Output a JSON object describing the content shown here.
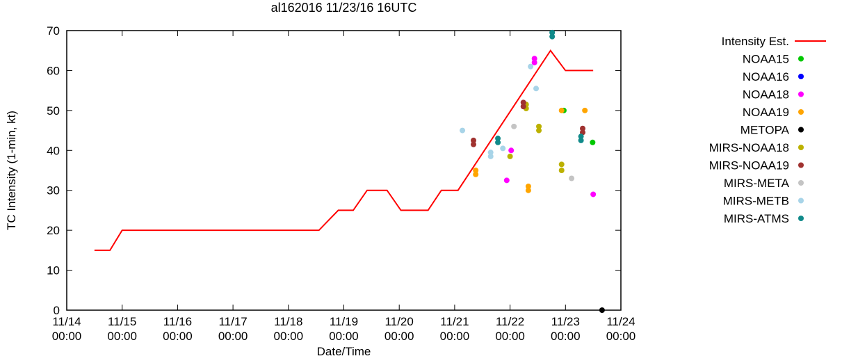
{
  "page": {
    "background_color": "#ffffff",
    "frame_color": "#000000"
  },
  "chart_data": {
    "type": "line",
    "title": "al162016 11/23/16 16UTC",
    "xlabel": "Date/Time",
    "ylabel": "TC Intensity (1-min, kt)",
    "grid": "off",
    "legend_position": "right",
    "x_axis": {
      "units": "days since 11/14 00:00",
      "range": [
        0,
        10
      ],
      "ticks": [
        {
          "pos": 0,
          "date": "11/14",
          "time": "00:00"
        },
        {
          "pos": 1,
          "date": "11/15",
          "time": "00:00"
        },
        {
          "pos": 2,
          "date": "11/16",
          "time": "00:00"
        },
        {
          "pos": 3,
          "date": "11/17",
          "time": "00:00"
        },
        {
          "pos": 4,
          "date": "11/18",
          "time": "00:00"
        },
        {
          "pos": 5,
          "date": "11/19",
          "time": "00:00"
        },
        {
          "pos": 6,
          "date": "11/20",
          "time": "00:00"
        },
        {
          "pos": 7,
          "date": "11/21",
          "time": "00:00"
        },
        {
          "pos": 8,
          "date": "11/22",
          "time": "00:00"
        },
        {
          "pos": 9,
          "date": "11/23",
          "time": "00:00"
        },
        {
          "pos": 10,
          "date": "11/24",
          "time": "00:00"
        }
      ]
    },
    "y_axis": {
      "range": [
        0,
        70
      ],
      "ticks": [
        0,
        10,
        20,
        30,
        40,
        50,
        60,
        70
      ]
    },
    "line_series": {
      "name": "Intensity Est.",
      "color": "#ff0000",
      "points": [
        [
          0.5,
          15
        ],
        [
          0.78,
          15
        ],
        [
          1.0,
          20
        ],
        [
          4.55,
          20
        ],
        [
          4.9,
          25
        ],
        [
          5.17,
          25
        ],
        [
          5.42,
          30
        ],
        [
          5.78,
          30
        ],
        [
          6.03,
          25
        ],
        [
          6.52,
          25
        ],
        [
          6.76,
          30
        ],
        [
          7.06,
          30
        ],
        [
          8.73,
          65
        ],
        [
          9.0,
          60
        ],
        [
          9.5,
          60
        ]
      ]
    },
    "scatter_series": [
      {
        "name": "NOAA15",
        "color": "#00c800",
        "points": [
          [
            8.97,
            50
          ],
          [
            9.49,
            42
          ]
        ]
      },
      {
        "name": "NOAA16",
        "color": "#0000ff",
        "points": []
      },
      {
        "name": "NOAA18",
        "color": "#ff00ff",
        "points": [
          [
            7.94,
            32.5
          ],
          [
            8.02,
            40
          ],
          [
            8.44,
            63
          ],
          [
            8.44,
            62
          ],
          [
            9.5,
            29
          ]
        ]
      },
      {
        "name": "NOAA19",
        "color": "#ffa500",
        "points": [
          [
            7.38,
            35
          ],
          [
            7.38,
            34
          ],
          [
            8.33,
            31
          ],
          [
            8.33,
            30
          ],
          [
            8.93,
            50
          ],
          [
            9.35,
            50
          ]
        ]
      },
      {
        "name": "METOPA",
        "color": "#000000",
        "points": [
          [
            9.66,
            0
          ]
        ]
      },
      {
        "name": "MIRS-NOAA18",
        "color": "#bcb100",
        "points": [
          [
            8.0,
            38.5
          ],
          [
            8.29,
            51.5
          ],
          [
            8.29,
            50.5
          ],
          [
            8.52,
            46
          ],
          [
            8.52,
            45
          ],
          [
            8.93,
            36.5
          ],
          [
            8.93,
            35
          ]
        ]
      },
      {
        "name": "MIRS-NOAA19",
        "color": "#a03230",
        "points": [
          [
            7.34,
            42.5
          ],
          [
            7.34,
            41.5
          ],
          [
            8.24,
            52
          ],
          [
            8.24,
            51
          ],
          [
            9.31,
            45.5
          ],
          [
            9.31,
            44.5
          ]
        ]
      },
      {
        "name": "MIRS-META",
        "color": "#c4c4c4",
        "points": [
          [
            8.07,
            46
          ],
          [
            9.11,
            33
          ]
        ]
      },
      {
        "name": "MIRS-METB",
        "color": "#a8d4e8",
        "points": [
          [
            7.14,
            45
          ],
          [
            7.65,
            39.5
          ],
          [
            7.65,
            38.5
          ],
          [
            7.87,
            40.5
          ],
          [
            8.37,
            61
          ],
          [
            8.47,
            55.5
          ]
        ]
      },
      {
        "name": "MIRS-ATMS",
        "color": "#108a8a",
        "points": [
          [
            7.78,
            43
          ],
          [
            7.78,
            42
          ],
          [
            8.76,
            69.5
          ],
          [
            8.76,
            68.5
          ],
          [
            9.28,
            43.5
          ],
          [
            9.28,
            42.5
          ]
        ]
      }
    ]
  }
}
